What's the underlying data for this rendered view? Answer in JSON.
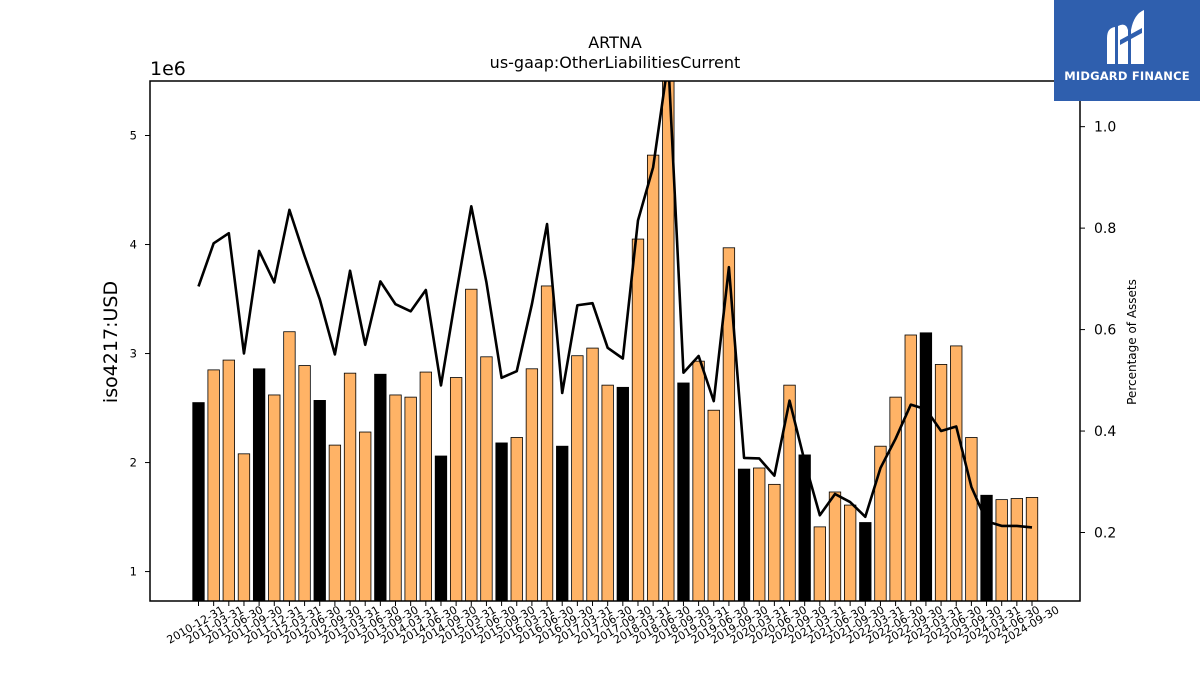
{
  "chart_data": {
    "type": "bar",
    "title": "ARTNA",
    "subtitle": "us-gaap:OtherLiabilitiesCurrent",
    "ylabel": "iso4217:USD",
    "y_offset_label": "1e6",
    "y2label": "Percentage of Assets",
    "ylim": [
      0.73,
      5.5
    ],
    "y2lim": [
      0.065,
      1.09
    ],
    "yticks": [
      1,
      2,
      3,
      4,
      5
    ],
    "y2ticks": [
      0.2,
      0.4,
      0.6,
      0.8,
      1.0
    ],
    "grid": false,
    "legend": "none",
    "colors": {
      "q4_bar": "#000000",
      "bar": "#ffb366",
      "line": "#000000"
    },
    "categories": [
      "2010-12-31",
      "2011-03-31",
      "2011-06-30",
      "2011-09-30",
      "2011-12-31",
      "2012-03-31",
      "2012-06-30",
      "2012-09-30",
      "2012-12-31",
      "2013-03-31",
      "2013-06-30",
      "2013-09-30",
      "2013-12-31",
      "2014-03-31",
      "2014-06-30",
      "2014-09-30",
      "2014-12-31",
      "2015-03-31",
      "2015-06-30",
      "2015-09-30",
      "2015-12-31",
      "2016-03-31",
      "2016-06-30",
      "2016-09-30",
      "2016-12-31",
      "2017-03-31",
      "2017-06-30",
      "2017-09-30",
      "2017-12-31",
      "2018-03-31",
      "2018-06-30",
      "2018-09-30",
      "2018-12-31",
      "2019-03-31",
      "2019-06-30",
      "2019-09-30",
      "2019-12-31",
      "2020-03-31",
      "2020-06-30",
      "2020-09-30",
      "2020-12-31",
      "2021-03-31",
      "2021-06-30",
      "2021-09-30",
      "2021-12-31",
      "2022-03-31",
      "2022-06-30",
      "2022-09-30",
      "2022-12-31",
      "2023-03-31",
      "2023-06-30",
      "2023-09-30",
      "2023-12-31",
      "2024-03-31",
      "2024-06-30",
      "2024-09-30"
    ],
    "xtick_labels": [
      "2010-12-31",
      "2011-03-31",
      "2011-06-30",
      "2011-09-30",
      "2011-12-31",
      "2012-03-31",
      "2012-06-30",
      "2012-09-30",
      "2013-03-31",
      "2013-06-30",
      "2013-09-30",
      "2014-03-31",
      "2014-06-30",
      "2014-09-30",
      "2015-03-31",
      "2015-06-30",
      "2015-09-30",
      "2016-03-31",
      "2016-06-30",
      "2016-09-30",
      "2017-03-31",
      "2017-06-30",
      "2017-09-30",
      "2018-03-31",
      "2018-06-30",
      "2018-09-30",
      "2019-03-31",
      "2019-06-30",
      "2019-09-30",
      "2020-03-31",
      "2020-06-30",
      "2020-09-30",
      "2021-03-31",
      "2021-06-30",
      "2021-09-30",
      "2022-03-31",
      "2022-06-30",
      "2022-09-30",
      "2023-03-31",
      "2023-06-30",
      "2023-09-30",
      "2024-03-31",
      "2024-06-30",
      "2024-09-30"
    ],
    "series": [
      {
        "type": "bar",
        "values": [
          2.55,
          2.85,
          2.94,
          2.08,
          2.86,
          2.62,
          3.2,
          2.89,
          2.57,
          2.16,
          2.82,
          2.28,
          2.81,
          2.62,
          2.6,
          2.83,
          2.06,
          2.78,
          3.59,
          2.97,
          2.18,
          2.23,
          2.86,
          3.62,
          2.15,
          2.98,
          3.05,
          2.71,
          2.69,
          4.05,
          4.82,
          5.55,
          2.73,
          2.93,
          2.48,
          3.97,
          1.94,
          1.95,
          1.8,
          2.71,
          2.07,
          1.41,
          1.73,
          1.61,
          1.45,
          2.15,
          2.6,
          3.17,
          3.19,
          2.9,
          3.07,
          2.23,
          1.7,
          1.66,
          1.67,
          1.68
        ],
        "q4": [
          true,
          false,
          false,
          false,
          true,
          false,
          false,
          false,
          true,
          false,
          false,
          false,
          true,
          false,
          false,
          false,
          true,
          false,
          false,
          false,
          true,
          false,
          false,
          false,
          true,
          false,
          false,
          false,
          true,
          false,
          false,
          false,
          true,
          false,
          false,
          false,
          true,
          false,
          false,
          false,
          true,
          false,
          false,
          false,
          true,
          false,
          false,
          false,
          true,
          false,
          false,
          false,
          true,
          false,
          false,
          false
        ]
      },
      {
        "type": "line",
        "axis": "right",
        "values": [
          0.685,
          0.77,
          0.79,
          0.553,
          0.755,
          0.693,
          0.836,
          0.745,
          0.66,
          0.551,
          0.716,
          0.57,
          0.695,
          0.65,
          0.636,
          0.678,
          0.49,
          0.67,
          0.843,
          0.693,
          0.505,
          0.518,
          0.65,
          0.808,
          0.475,
          0.648,
          0.652,
          0.564,
          0.543,
          0.815,
          0.92,
          1.13,
          0.515,
          0.548,
          0.459,
          0.723,
          0.347,
          0.346,
          0.312,
          0.46,
          0.34,
          0.234,
          0.276,
          0.26,
          0.231,
          0.327,
          0.385,
          0.452,
          0.443,
          0.4,
          0.409,
          0.29,
          0.222,
          0.213,
          0.213,
          0.21
        ]
      }
    ]
  },
  "brand": {
    "name": "MIDGARD FINANCE",
    "logo_icon": "midgard-logo-icon"
  }
}
